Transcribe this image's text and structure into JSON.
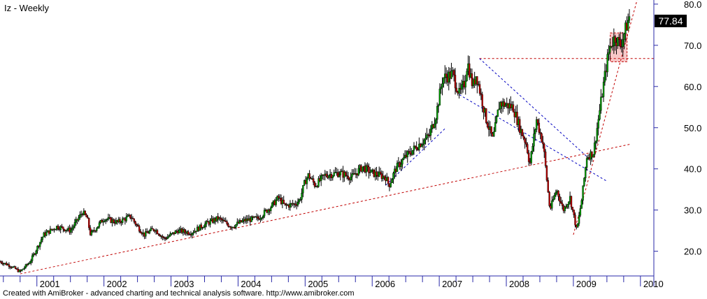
{
  "title": "Iz - Weekly",
  "last_price_label": "77.84",
  "footer": "Created with AmiBroker - advanced charting and technical analysis software. http://www.amibroker.com",
  "colors": {
    "up": "#00a000",
    "down": "#c00000",
    "body": "#000000",
    "trend": "#c00000",
    "channel": "#0000c0",
    "axis": "#2a2aa8",
    "zone": "#f4b0b0"
  },
  "chart_data": {
    "type": "candlestick",
    "ylim": [
      14,
      81
    ],
    "yticks": [
      20.0,
      30.0,
      40.0,
      50.0,
      60.0,
      70.0,
      80.0
    ],
    "ytick_labels": [
      "20.0",
      "30.0",
      "40.0",
      "50.0",
      "60.0",
      "70.0",
      "80.0"
    ],
    "xlim": [
      2000.45,
      2010.2
    ],
    "year_labels": [
      "2001",
      "2002",
      "2003",
      "2004",
      "2005",
      "2006",
      "2007",
      "2008",
      "2009",
      "2010"
    ],
    "year_positions": [
      2001,
      2002,
      2003,
      2004,
      2005,
      2006,
      2007,
      2008,
      2009,
      2010
    ],
    "price_path": [
      [
        2000.45,
        17.5
      ],
      [
        2000.6,
        16.5
      ],
      [
        2000.75,
        15.0
      ],
      [
        2000.9,
        17.5
      ],
      [
        2001.1,
        24.0
      ],
      [
        2001.3,
        26.0
      ],
      [
        2001.5,
        25.0
      ],
      [
        2001.6,
        27.5
      ],
      [
        2001.68,
        29.5
      ],
      [
        2001.75,
        28.0
      ],
      [
        2001.8,
        24.0
      ],
      [
        2002.0,
        28.0
      ],
      [
        2002.2,
        27.0
      ],
      [
        2002.4,
        28.5
      ],
      [
        2002.5,
        26.0
      ],
      [
        2002.6,
        24.0
      ],
      [
        2002.75,
        25.5
      ],
      [
        2002.9,
        23.0
      ],
      [
        2003.1,
        25.0
      ],
      [
        2003.3,
        24.5
      ],
      [
        2003.5,
        26.5
      ],
      [
        2003.7,
        28.0
      ],
      [
        2003.9,
        26.0
      ],
      [
        2004.1,
        27.5
      ],
      [
        2004.3,
        28.0
      ],
      [
        2004.5,
        31.0
      ],
      [
        2004.6,
        33.0
      ],
      [
        2004.7,
        31.0
      ],
      [
        2004.85,
        31.5
      ],
      [
        2004.92,
        32.5
      ],
      [
        2005.0,
        37.0
      ],
      [
        2005.05,
        38.5
      ],
      [
        2005.15,
        36.0
      ],
      [
        2005.3,
        38.5
      ],
      [
        2005.5,
        39.0
      ],
      [
        2005.7,
        38.0
      ],
      [
        2005.85,
        40.5
      ],
      [
        2006.0,
        39.0
      ],
      [
        2006.2,
        38.0
      ],
      [
        2006.25,
        36.0
      ],
      [
        2006.35,
        40.0
      ],
      [
        2006.5,
        43.0
      ],
      [
        2006.7,
        46.0
      ],
      [
        2006.85,
        48.0
      ],
      [
        2006.95,
        53.0
      ],
      [
        2007.05,
        62.0
      ],
      [
        2007.2,
        63.0
      ],
      [
        2007.3,
        58.0
      ],
      [
        2007.38,
        61.0
      ],
      [
        2007.42,
        66.0
      ],
      [
        2007.5,
        60.0
      ],
      [
        2007.55,
        63.0
      ],
      [
        2007.7,
        52.0
      ],
      [
        2007.8,
        47.0
      ],
      [
        2007.9,
        56.0
      ],
      [
        2008.1,
        55.0
      ],
      [
        2008.2,
        50.0
      ],
      [
        2008.3,
        46.0
      ],
      [
        2008.35,
        41.0
      ],
      [
        2008.45,
        52.0
      ],
      [
        2008.55,
        46.0
      ],
      [
        2008.6,
        38.0
      ],
      [
        2008.65,
        30.0
      ],
      [
        2008.75,
        35.0
      ],
      [
        2008.85,
        30.0
      ],
      [
        2008.95,
        33.0
      ],
      [
        2009.0,
        29.0
      ],
      [
        2009.05,
        25.0
      ],
      [
        2009.12,
        32.0
      ],
      [
        2009.2,
        43.0
      ],
      [
        2009.3,
        44.0
      ],
      [
        2009.4,
        55.0
      ],
      [
        2009.5,
        66.0
      ],
      [
        2009.55,
        70.0
      ],
      [
        2009.62,
        72.0
      ],
      [
        2009.7,
        70.0
      ],
      [
        2009.78,
        74.0
      ],
      [
        2009.85,
        77.84
      ]
    ],
    "trendlines": [
      {
        "points": [
          [
            2000.75,
            14.5
          ],
          [
            2009.85,
            46.0
          ]
        ],
        "color": "trend"
      },
      {
        "points": [
          [
            2007.6,
            66.8
          ],
          [
            2010.2,
            66.8
          ]
        ],
        "color": "trend"
      },
      {
        "points": [
          [
            2009.0,
            24.0
          ],
          [
            2009.95,
            81.0
          ]
        ],
        "color": "trend"
      },
      {
        "points": [
          [
            2006.2,
            36.0
          ],
          [
            2007.1,
            50.0
          ]
        ],
        "color": "channel"
      },
      {
        "points": [
          [
            2007.6,
            66.8
          ],
          [
            2009.2,
            43.0
          ]
        ],
        "color": "channel"
      },
      {
        "points": [
          [
            2007.3,
            58.0
          ],
          [
            2009.5,
            37.0
          ]
        ],
        "color": "channel"
      }
    ],
    "zone": {
      "x": [
        2009.55,
        2009.8
      ],
      "y": [
        66.0,
        73.0
      ]
    }
  }
}
